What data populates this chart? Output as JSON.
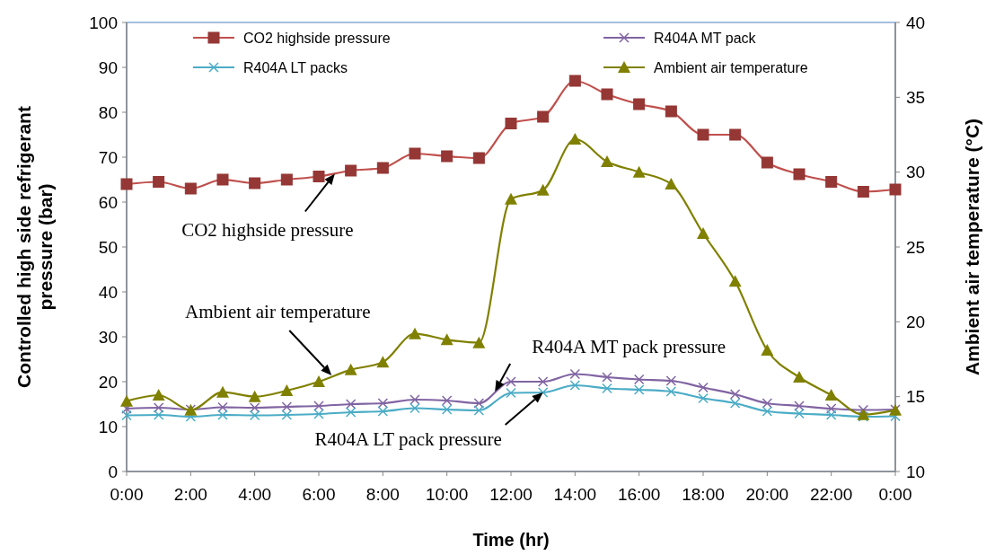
{
  "chart_data": {
    "type": "line",
    "xlabel": "Time (hr)",
    "ylabel": "Controlled high side refrigerant pressure (bar)",
    "y2label": "Ambient air temperature (°C)",
    "x": [
      0,
      1,
      2,
      3,
      4,
      5,
      6,
      7,
      8,
      9,
      10,
      11,
      12,
      13,
      14,
      15,
      16,
      17,
      18,
      19,
      20,
      21,
      22,
      23,
      24
    ],
    "xlim": [
      0,
      24
    ],
    "xticks": [
      {
        "value": 0,
        "label": "0:00"
      },
      {
        "value": 2,
        "label": "2:00"
      },
      {
        "value": 4,
        "label": "4:00"
      },
      {
        "value": 6,
        "label": "6:00"
      },
      {
        "value": 8,
        "label": "8:00"
      },
      {
        "value": 10,
        "label": "10:00"
      },
      {
        "value": 12,
        "label": "12:00"
      },
      {
        "value": 14,
        "label": "14:00"
      },
      {
        "value": 16,
        "label": "16:00"
      },
      {
        "value": 18,
        "label": "18:00"
      },
      {
        "value": 20,
        "label": "20:00"
      },
      {
        "value": 22,
        "label": "22:00"
      },
      {
        "value": 24,
        "label": "0:00"
      }
    ],
    "ylim": [
      0,
      100
    ],
    "yticks": [
      0,
      10,
      20,
      30,
      40,
      50,
      60,
      70,
      80,
      90,
      100
    ],
    "y2lim": [
      10,
      40
    ],
    "y2ticks": [
      10,
      15,
      20,
      25,
      30,
      35,
      40
    ],
    "legend": "top",
    "grid": false,
    "series": [
      {
        "name": "CO2 highside pressure",
        "color": "#c0504d",
        "marker": "square",
        "values": [
          64,
          64.5,
          63,
          65,
          64.2,
          65,
          65.7,
          67,
          67.6,
          70.8,
          70.2,
          69.8,
          77.5,
          79,
          87,
          84,
          81.8,
          80.2,
          75,
          75,
          68.8,
          66.2,
          64.5,
          62.3,
          62.8
        ]
      },
      {
        "name": "R404A MT pack",
        "color": "#8064a2",
        "marker": "cross",
        "values": [
          14,
          14.2,
          13.8,
          14.3,
          14.2,
          14.4,
          14.6,
          15,
          15.2,
          16,
          15.8,
          15.2,
          20,
          20,
          21.7,
          21,
          20.5,
          20.2,
          18.7,
          17.2,
          15.2,
          14.6,
          14,
          13.7,
          13.8
        ]
      },
      {
        "name": "R404A LT packs",
        "color": "#4bacc6",
        "marker": "cross",
        "values": [
          12.5,
          12.6,
          12.2,
          12.6,
          12.5,
          12.6,
          12.8,
          13.2,
          13.4,
          14.1,
          13.8,
          13.6,
          17.5,
          17.6,
          19.2,
          18.5,
          18.2,
          17.8,
          16.3,
          15.2,
          13.4,
          12.9,
          12.6,
          12.2,
          12.3
        ]
      },
      {
        "name": "Ambient air temperature",
        "color": "#808000",
        "marker": "triangle",
        "axis": "y2",
        "values": [
          14.7,
          15.1,
          14.1,
          15.3,
          15,
          15.4,
          16,
          16.8,
          17.3,
          19.2,
          18.8,
          18.6,
          28.2,
          28.8,
          32.2,
          30.7,
          30,
          29.2,
          25.9,
          22.7,
          18.1,
          16.3,
          15.1,
          13.8,
          14.1
        ]
      }
    ],
    "annotations": [
      {
        "text": "CO2 highside pressure",
        "x": 6.5,
        "y": 66.3
      },
      {
        "text": "Ambient air temperature",
        "x": 6.4,
        "y": 21.4
      },
      {
        "text": "R404A MT pack pressure",
        "x": 11.5,
        "y": 17.8
      },
      {
        "text": "R404A LT pack pressure",
        "x": 13,
        "y": 17.6
      }
    ]
  }
}
